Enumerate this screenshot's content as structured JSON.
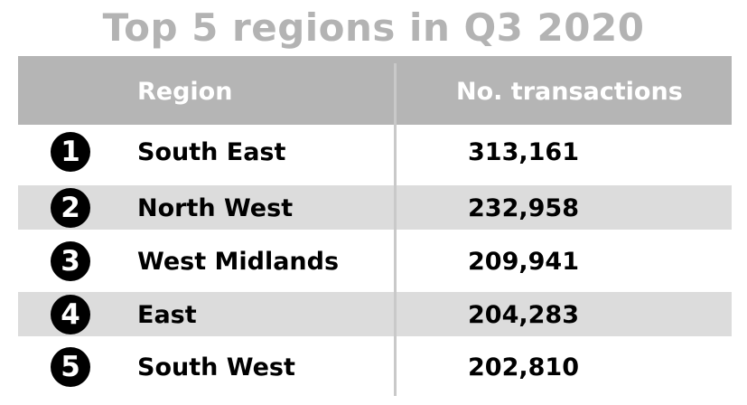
{
  "title": "Top 5 regions in Q3 2020",
  "header": {
    "region_label": "Region",
    "transactions_label": "No. transactions"
  },
  "rows": [
    {
      "rank": "1",
      "region": "South East",
      "transactions": "313,161"
    },
    {
      "rank": "2",
      "region": "North West",
      "transactions": "232,958"
    },
    {
      "rank": "3",
      "region": "West Midlands",
      "transactions": "209,941"
    },
    {
      "rank": "4",
      "region": "East",
      "transactions": "204,283"
    },
    {
      "rank": "5",
      "region": "South West",
      "transactions": "202,810"
    }
  ],
  "colors": {
    "title": "#b3b3b3",
    "header_bg": "#b5b5b5",
    "header_text": "#ffffff",
    "row_shade": "#dcdcdc",
    "badge": "#000000"
  }
}
